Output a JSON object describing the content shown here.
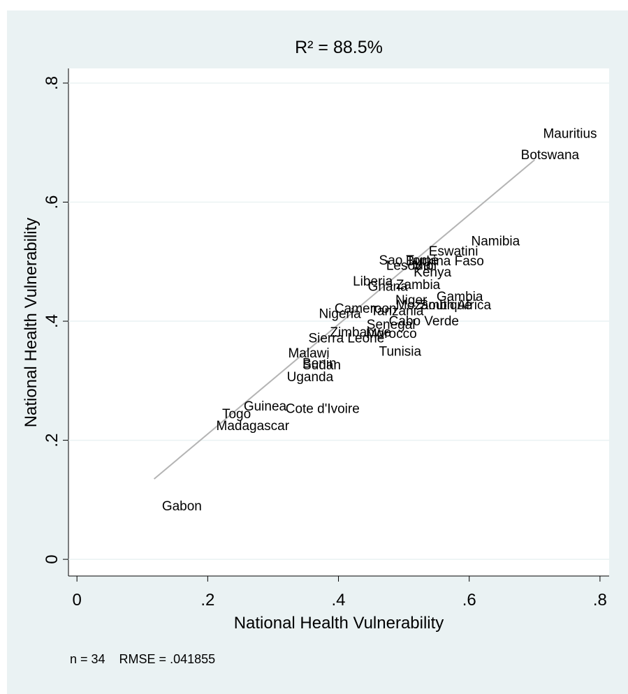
{
  "chart_data": {
    "type": "scatter",
    "title": "R² = 88.5%",
    "x_label": "National Health Vulnerability",
    "y_label": "National Health Vulnerability",
    "note": "n = 34    RMSE = .041855",
    "xlim": [
      -0.013,
      0.814
    ],
    "ylim": [
      -0.028,
      0.8246
    ],
    "xticks": [
      0,
      {
        "value": 0.2,
        "label": ".2"
      },
      {
        "value": 0.4,
        "label": ".4"
      },
      {
        "value": 0.6,
        "label": ".6"
      },
      {
        "value": 0.8,
        "label": ".8"
      }
    ],
    "yticks": [
      0,
      {
        "value": 0.2,
        "label": ".2"
      },
      {
        "value": 0.4,
        "label": ".4"
      },
      {
        "value": 0.6,
        "label": ".6"
      },
      {
        "value": 0.8,
        "label": ".8"
      }
    ],
    "grid": true,
    "color": "#1a476f",
    "labels": [
      "Mauritius",
      "Botswana",
      "Namibia",
      "Eswatini",
      "Sao Tome",
      "Burkina Faso",
      "Lesotho",
      "Mali",
      "Kenya",
      "Liberia",
      "Ghana",
      "Zambia",
      "Gambia",
      "Niger",
      "Mozambique",
      "South Africa",
      "Cameroon",
      "Tanzania",
      "Nigeria",
      "Cabo Verde",
      "Senegal",
      "Zimbabwe",
      "Morocco",
      "Sierra Leone",
      "Tunisia",
      "Malawi",
      "Benin",
      "Sudan",
      "Uganda",
      "Guinea",
      "Cote d'Ivoire",
      "Togo",
      "Madagascar",
      "Gabon"
    ],
    "x": [
      0.713,
      0.679,
      0.603,
      0.538,
      0.462,
      0.503,
      0.473,
      0.513,
      0.515,
      0.422,
      0.445,
      0.488,
      0.55,
      0.487,
      0.488,
      0.524,
      0.394,
      0.449,
      0.37,
      0.477,
      0.443,
      0.387,
      0.442,
      0.354,
      0.462,
      0.323,
      0.345,
      0.345,
      0.321,
      0.255,
      0.319,
      0.222,
      0.213,
      0.13
    ],
    "y": [
      0.714,
      0.678,
      0.533,
      0.516,
      0.501,
      0.5,
      0.492,
      0.493,
      0.481,
      0.466,
      0.457,
      0.46,
      0.44,
      0.434,
      0.426,
      0.426,
      0.42,
      0.416,
      0.411,
      0.399,
      0.393,
      0.38,
      0.378,
      0.37,
      0.348,
      0.345,
      0.328,
      0.325,
      0.305,
      0.256,
      0.252,
      0.243,
      0.223,
      0.088
    ],
    "fit": {
      "x": [
        0.118,
        0.7
      ],
      "y": [
        0.135,
        0.671
      ],
      "color": "#b4b4b4"
    }
  }
}
